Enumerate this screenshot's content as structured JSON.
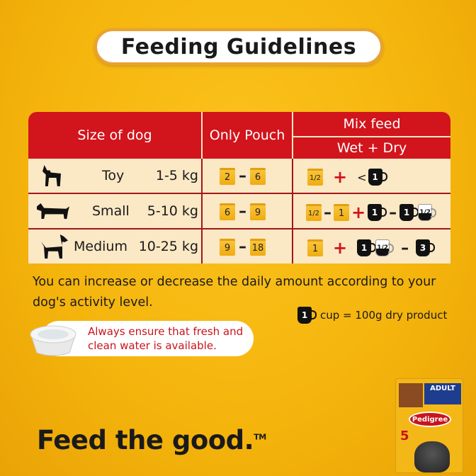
{
  "title": "Feeding Guidelines",
  "table": {
    "headers": {
      "size": "Size of dog",
      "pouch": "Only Pouch",
      "mix": "Mix feed",
      "mix_sub": "Wet + Dry"
    },
    "rows": [
      {
        "size": "Toy",
        "weight": "1-5 kg",
        "pouch_min": "2",
        "pouch_max": "6",
        "mix": {
          "wet": [
            "1/2"
          ],
          "dry_prefix": "<",
          "dry": [
            "1"
          ]
        }
      },
      {
        "size": "Small",
        "weight": "5-10 kg",
        "pouch_min": "6",
        "pouch_max": "9",
        "mix": {
          "wet": [
            "1/2",
            "1"
          ],
          "dry_min": "1",
          "dry_max": [
            "1",
            "1/2"
          ]
        }
      },
      {
        "size": "Medium",
        "weight": "10-25 kg",
        "pouch_min": "9",
        "pouch_max": "18",
        "mix": {
          "wet": [
            "1"
          ],
          "dry_min": [
            "1",
            "1/2"
          ],
          "dry_max": "3"
        }
      }
    ]
  },
  "note": "You can increase or decrease the daily amount according to your dog's activity level.",
  "cup_legend": {
    "cup": "1",
    "text": "cup = 100g dry product"
  },
  "water_note": "Always ensure that fresh and clean water is available.",
  "tagline": "Feed the good.",
  "tm": "TM",
  "pack": {
    "brand": "Pedigree",
    "variant": "ADULT",
    "badge": "5"
  },
  "colors": {
    "background": "#f4b40c",
    "header": "#d2141c",
    "cell": "#fbe8c5"
  }
}
